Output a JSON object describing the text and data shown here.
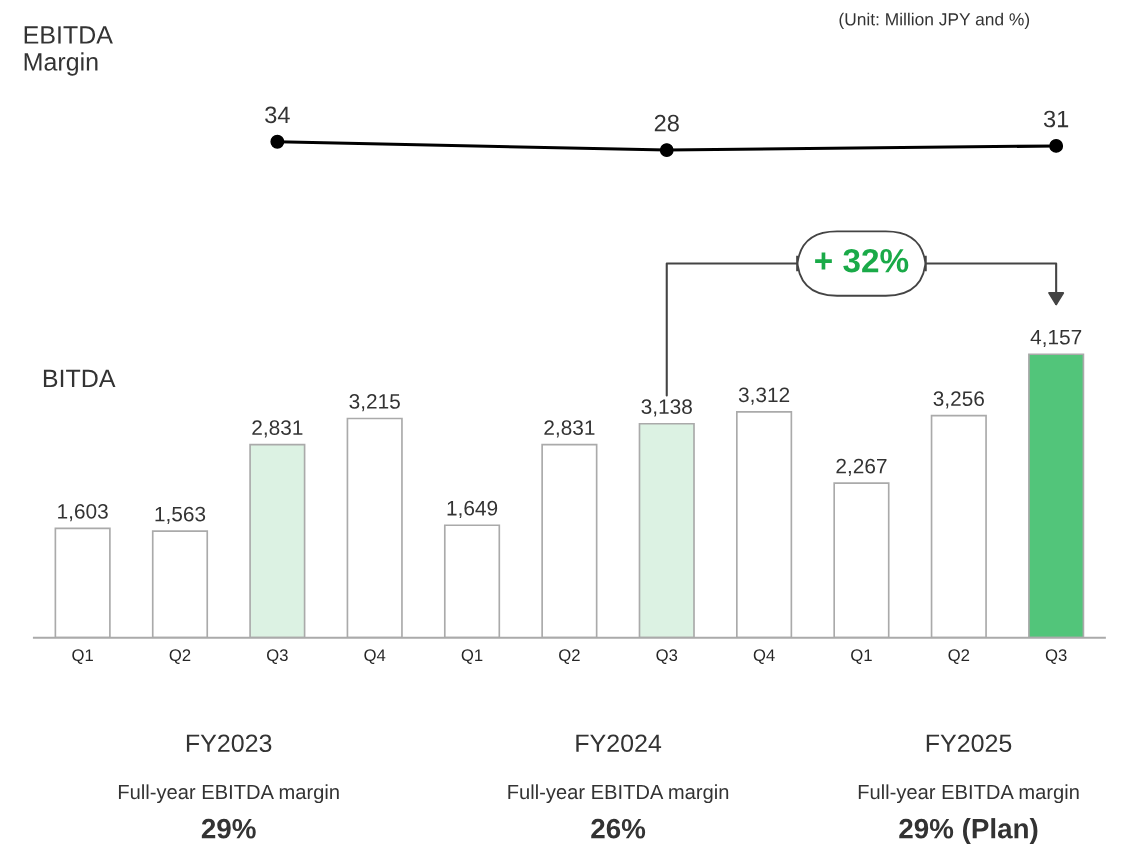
{
  "chart_data": [
    {
      "type": "line",
      "ylabel": "EBITDA\nMargin",
      "categories": [
        null,
        null,
        null
      ],
      "tick_labels": false,
      "marker": "circle",
      "line_style": "solid",
      "data_labels": true,
      "series": [
        {
          "color": "#000000",
          "values": [
            34,
            28,
            31
          ]
        }
      ],
      "annotations": [
        "(Unit: Million JPY and %)"
      ]
    },
    {
      "type": "bar",
      "ylabel": "BITDA",
      "categories": [
        "Q1",
        "Q2",
        "Q3",
        "Q4",
        "Q1",
        "Q2",
        "Q3",
        "Q4",
        "Q1",
        "Q2",
        "Q3"
      ],
      "tick_labels": "x",
      "values": [
        1603,
        1563,
        2831,
        3215,
        1649,
        2831,
        3138,
        3312,
        2267,
        3256,
        4157
      ],
      "value_labels": [
        "1,603",
        "1,563",
        "2,831",
        "3,215",
        "1,649",
        "2,831",
        "3,138",
        "3,312",
        "2,267",
        "3,256",
        "4,157"
      ],
      "colors": [
        "#ffffff",
        "#ffffff",
        "#dcf2e3",
        "#ffffff",
        "#ffffff",
        "#ffffff",
        "#dcf2e3",
        "#ffffff",
        "#ffffff",
        "#ffffff",
        "#52c57a"
      ],
      "annotations": [
        "+ 32%",
        "FY2023",
        "FY2024",
        "FY2025",
        "Full-year EBITDA margin",
        "Full-year EBITDA margin",
        "Full-year EBITDA margin",
        "29%",
        "26%",
        "29% (Plan)"
      ]
    }
  ]
}
